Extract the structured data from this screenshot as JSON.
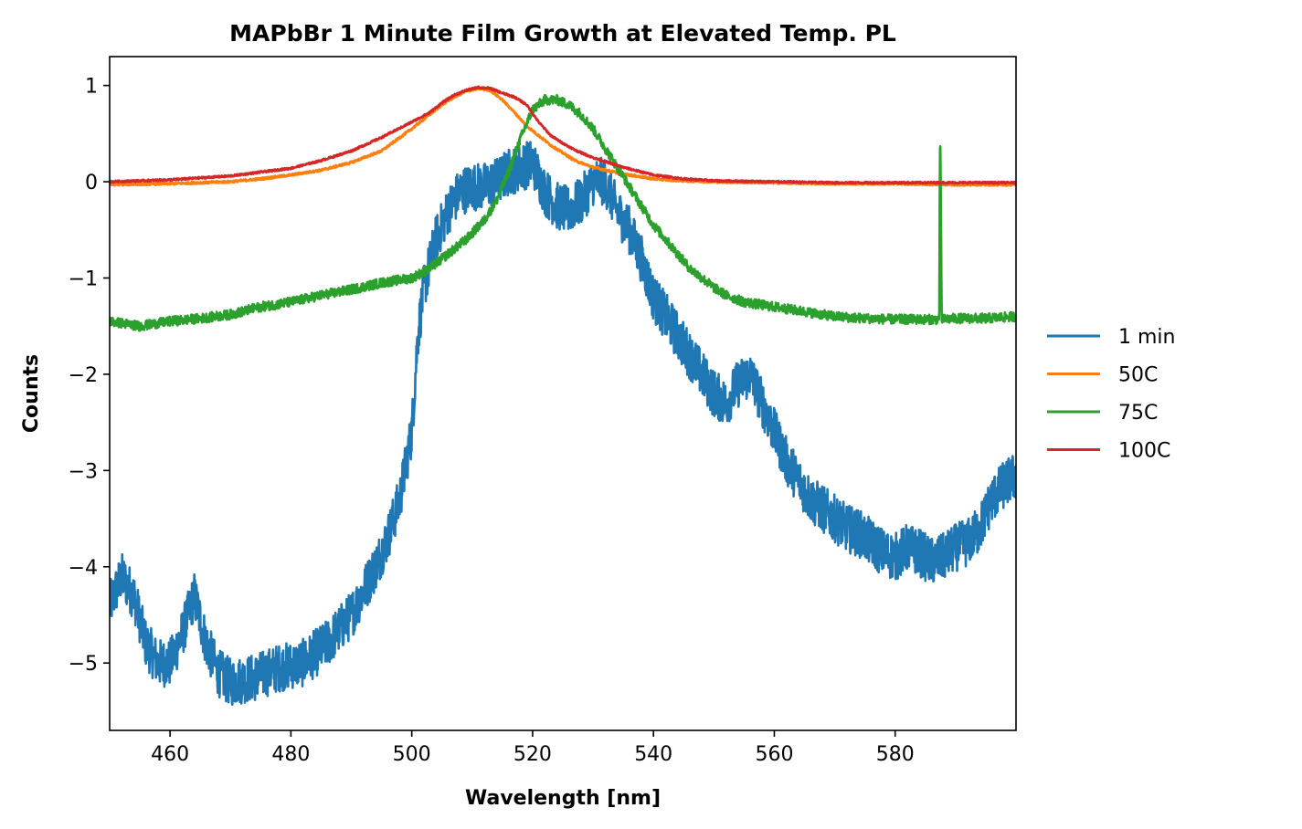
{
  "chart_data": {
    "type": "line",
    "title": "MAPbBr 1 Minute Film Growth at Elevated Temp. PL",
    "xlabel": "Wavelength [nm]",
    "ylabel": "Counts",
    "xlim": [
      450,
      600
    ],
    "ylim": [
      -5.7,
      1.3
    ],
    "xticks": [
      460,
      480,
      500,
      520,
      540,
      560,
      580
    ],
    "yticks": [
      1,
      0,
      -1,
      -2,
      -3,
      -4,
      -5
    ],
    "xtick_labels": [
      "460",
      "480",
      "500",
      "520",
      "540",
      "560",
      "580"
    ],
    "ytick_labels": [
      "1",
      "0",
      "−1",
      "−2",
      "−3",
      "−4",
      "−5"
    ],
    "grid": false,
    "legend_position": "outside-right",
    "series": [
      {
        "name": "1 min",
        "color": "#1f77b4",
        "noise": 0.25,
        "x": [
          450,
          452,
          454,
          456,
          458,
          460,
          462,
          464,
          466,
          468,
          470,
          474,
          478,
          482,
          486,
          490,
          494,
          496,
          498,
          500,
          501,
          502,
          504,
          506,
          508,
          510,
          512,
          514,
          516,
          518,
          520,
          522,
          524,
          526,
          528,
          530,
          532,
          534,
          536,
          538,
          540,
          542,
          544,
          546,
          548,
          550,
          552,
          554,
          556,
          558,
          560,
          562,
          564,
          566,
          568,
          570,
          572,
          574,
          576,
          578,
          580,
          582,
          584,
          586,
          588,
          590,
          592,
          594,
          596,
          598,
          600
        ],
        "y": [
          -4.4,
          -4.1,
          -4.3,
          -4.8,
          -5.0,
          -5.0,
          -4.7,
          -4.3,
          -4.8,
          -5.1,
          -5.2,
          -5.15,
          -5.05,
          -5.0,
          -4.8,
          -4.5,
          -4.0,
          -3.7,
          -3.3,
          -2.6,
          -1.6,
          -1.1,
          -0.6,
          -0.3,
          -0.1,
          -0.05,
          -0.05,
          0.0,
          0.1,
          0.15,
          0.2,
          -0.1,
          -0.25,
          -0.3,
          -0.2,
          0.0,
          0.0,
          -0.3,
          -0.5,
          -0.8,
          -1.2,
          -1.4,
          -1.6,
          -1.8,
          -2.0,
          -2.2,
          -2.3,
          -2.1,
          -2.0,
          -2.3,
          -2.6,
          -2.9,
          -3.1,
          -3.3,
          -3.4,
          -3.5,
          -3.6,
          -3.65,
          -3.75,
          -3.85,
          -3.9,
          -3.8,
          -3.85,
          -3.95,
          -3.9,
          -3.8,
          -3.75,
          -3.6,
          -3.3,
          -3.15,
          -3.05
        ]
      },
      {
        "name": "50C",
        "color": "#ff7f0e",
        "noise": 0.012,
        "x": [
          450,
          460,
          470,
          475,
          480,
          485,
          490,
          495,
          500,
          503,
          505,
          507,
          509,
          511,
          513,
          515,
          517,
          519,
          521,
          523,
          525,
          527,
          530,
          535,
          540,
          545,
          550,
          560,
          570,
          580,
          590,
          600
        ],
        "y": [
          -0.03,
          -0.02,
          0.0,
          0.03,
          0.07,
          0.12,
          0.2,
          0.32,
          0.55,
          0.7,
          0.8,
          0.88,
          0.94,
          0.97,
          0.95,
          0.85,
          0.72,
          0.58,
          0.48,
          0.38,
          0.3,
          0.22,
          0.15,
          0.08,
          0.03,
          0.01,
          0.0,
          -0.01,
          -0.02,
          -0.02,
          -0.03,
          -0.03
        ]
      },
      {
        "name": "75C",
        "color": "#2ca02c",
        "noise": 0.05,
        "x": [
          450,
          455,
          460,
          465,
          470,
          475,
          480,
          485,
          490,
          495,
          500,
          503,
          506,
          509,
          512,
          514,
          516,
          518,
          520,
          522,
          524,
          526,
          528,
          530,
          532,
          534,
          536,
          538,
          540,
          542,
          544,
          546,
          548,
          550,
          552,
          555,
          560,
          565,
          570,
          575,
          580,
          585,
          587.3,
          587.4,
          587.5,
          587.7,
          587.8,
          590,
          595,
          600
        ],
        "y": [
          -1.45,
          -1.5,
          -1.45,
          -1.42,
          -1.38,
          -1.3,
          -1.25,
          -1.18,
          -1.12,
          -1.05,
          -1.0,
          -0.9,
          -0.75,
          -0.6,
          -0.4,
          -0.2,
          0.1,
          0.45,
          0.75,
          0.85,
          0.85,
          0.8,
          0.7,
          0.55,
          0.35,
          0.15,
          -0.05,
          -0.25,
          -0.45,
          -0.6,
          -0.75,
          -0.9,
          -1.0,
          -1.1,
          -1.18,
          -1.25,
          -1.3,
          -1.35,
          -1.4,
          -1.42,
          -1.43,
          -1.43,
          -1.43,
          0.32,
          0.32,
          -1.43,
          -1.43,
          -1.42,
          -1.42,
          -1.4
        ]
      },
      {
        "name": "100C",
        "color": "#d62728",
        "noise": 0.01,
        "x": [
          450,
          460,
          470,
          475,
          480,
          485,
          490,
          495,
          500,
          503,
          505,
          507,
          509,
          511,
          513,
          515,
          517,
          519,
          521,
          523,
          525,
          527,
          530,
          535,
          540,
          545,
          550,
          560,
          570,
          580,
          590,
          600
        ],
        "y": [
          0.0,
          0.02,
          0.06,
          0.1,
          0.14,
          0.22,
          0.32,
          0.46,
          0.62,
          0.72,
          0.82,
          0.9,
          0.95,
          0.98,
          0.97,
          0.92,
          0.88,
          0.8,
          0.62,
          0.48,
          0.4,
          0.33,
          0.25,
          0.15,
          0.07,
          0.03,
          0.01,
          0.0,
          -0.01,
          -0.01,
          -0.01,
          -0.01
        ]
      }
    ]
  }
}
